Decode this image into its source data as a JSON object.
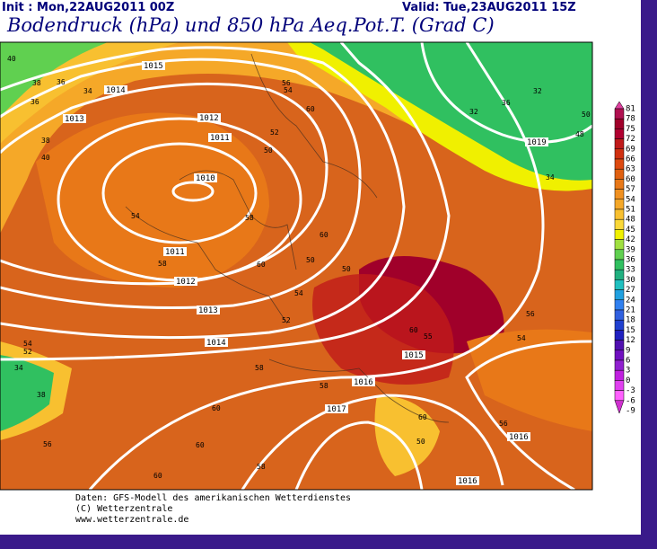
{
  "header": {
    "init": "Init : Mon,22AUG2011 00Z",
    "valid": "Valid: Tue,23AUG2011 15Z",
    "title": "Bodendruck (hPa) und 850 hPa Aeq.Pot.T. (Grad C)"
  },
  "map": {
    "isobar_labels": [
      1015,
      1014,
      1013,
      1012,
      1011,
      1010,
      1011,
      1012,
      1013,
      1014,
      1015,
      1016,
      1017,
      1016,
      1016,
      1019
    ],
    "theta_labels": [
      40,
      38,
      36,
      34,
      36,
      38,
      40,
      54,
      58,
      60,
      58,
      56,
      54,
      60,
      50,
      52,
      60,
      50,
      50,
      54,
      52,
      60,
      55,
      58,
      58,
      60,
      60,
      58,
      60,
      56,
      54,
      52,
      34,
      38,
      56,
      34,
      32,
      36,
      32,
      50,
      48,
      54,
      56,
      60,
      50
    ]
  },
  "colorbar": {
    "labels": [
      81,
      78,
      75,
      72,
      69,
      66,
      63,
      60,
      57,
      54,
      51,
      48,
      45,
      42,
      39,
      36,
      33,
      30,
      27,
      24,
      21,
      18,
      15,
      12,
      9,
      6,
      3,
      0,
      -3,
      -6,
      -9
    ],
    "colors": [
      "#e040a0",
      "#b01050",
      "#a0002a",
      "#b00030",
      "#c01a1a",
      "#d03010",
      "#dd4a10",
      "#e06010",
      "#e87818",
      "#f09020",
      "#f5a828",
      "#f8c030",
      "#fad838",
      "#f0f000",
      "#a0e040",
      "#60d050",
      "#30c060",
      "#20b080",
      "#20c0c0",
      "#20a0e0",
      "#3080f0",
      "#3060e0",
      "#2040d0",
      "#2020c0",
      "#5010b0",
      "#7010c0",
      "#9020d0",
      "#c020e0",
      "#e040f0",
      "#ff60ff",
      "#d030d0"
    ]
  },
  "footer": {
    "lines": [
      "Daten: GFS-Modell des amerikanischen Wetterdienstes",
      "(C) Wetterzentrale",
      "www.wetterzentrale.de"
    ]
  }
}
